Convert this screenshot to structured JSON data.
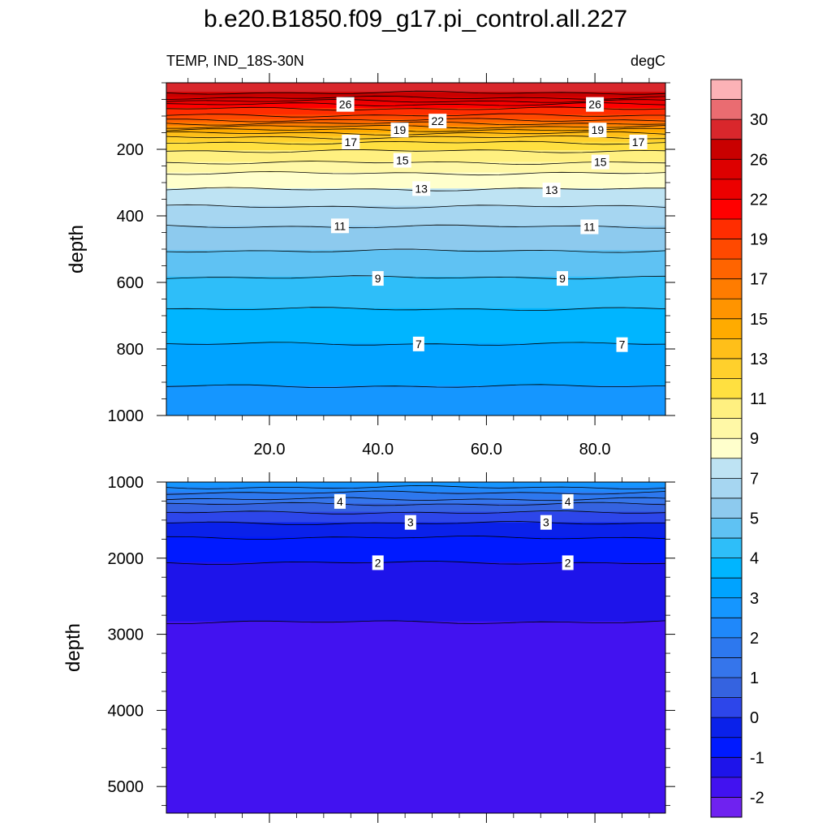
{
  "title": "b.e20.B1850.f09_g17.pi_control.all.227",
  "subtitle_left": "TEMP, IND_18S-30N",
  "subtitle_right": "degC",
  "chart_data": [
    {
      "type": "heatmap",
      "panel": "upper",
      "variable": "TEMP",
      "region": "IND_18S-30N",
      "units": "degC",
      "ylabel": "depth",
      "y_reversed": true,
      "xlim": [
        1,
        93
      ],
      "ylim": [
        0,
        1000
      ],
      "x_ticks": [
        20,
        40,
        60,
        80
      ],
      "x_tick_labels": [
        "20.0",
        "40.0",
        "60.0",
        "80.0"
      ],
      "y_ticks": [
        200,
        400,
        600,
        800,
        1000
      ],
      "y_tick_labels": [
        "200",
        "400",
        "600",
        "800",
        "1000"
      ],
      "contour_depths": [
        {
          "level": 29,
          "depth": 30
        },
        {
          "level": 28,
          "depth": 45
        },
        {
          "level": 27,
          "depth": 55
        },
        {
          "level": 26,
          "depth": 65
        },
        {
          "level": 25,
          "depth": 78
        },
        {
          "level": 24,
          "depth": 98
        },
        {
          "level": 23,
          "depth": 112
        },
        {
          "level": 22,
          "depth": 122
        },
        {
          "level": 21,
          "depth": 132
        },
        {
          "level": 20,
          "depth": 142
        },
        {
          "level": 19,
          "depth": 152
        },
        {
          "level": 18,
          "depth": 164
        },
        {
          "level": 17,
          "depth": 180
        },
        {
          "level": 16,
          "depth": 205
        },
        {
          "level": 15,
          "depth": 240
        },
        {
          "level": 14,
          "depth": 272
        },
        {
          "level": 13,
          "depth": 320
        },
        {
          "level": 12,
          "depth": 372
        },
        {
          "level": 11,
          "depth": 432
        },
        {
          "level": 10,
          "depth": 505
        },
        {
          "level": 9,
          "depth": 585
        },
        {
          "level": 8,
          "depth": 680
        },
        {
          "level": 7,
          "depth": 785
        },
        {
          "level": 6,
          "depth": 912
        }
      ],
      "contour_labels": [
        {
          "text": "26",
          "x": 34.0,
          "depth": 65
        },
        {
          "text": "26",
          "x": 80.0,
          "depth": 65
        },
        {
          "text": "22",
          "x": 51.0,
          "depth": 115
        },
        {
          "text": "19",
          "x": 44.0,
          "depth": 142
        },
        {
          "text": "19",
          "x": 80.5,
          "depth": 142
        },
        {
          "text": "17",
          "x": 35.0,
          "depth": 178
        },
        {
          "text": "17",
          "x": 88.0,
          "depth": 178
        },
        {
          "text": "15",
          "x": 44.5,
          "depth": 233
        },
        {
          "text": "15",
          "x": 81.0,
          "depth": 238
        },
        {
          "text": "13",
          "x": 48.0,
          "depth": 318
        },
        {
          "text": "13",
          "x": 72.0,
          "depth": 322
        },
        {
          "text": "11",
          "x": 33.0,
          "depth": 430
        },
        {
          "text": "11",
          "x": 79.0,
          "depth": 433
        },
        {
          "text": "9",
          "x": 40.0,
          "depth": 588
        },
        {
          "text": "9",
          "x": 74.0,
          "depth": 588
        },
        {
          "text": "7",
          "x": 47.5,
          "depth": 785
        },
        {
          "text": "7",
          "x": 85.0,
          "depth": 787
        }
      ]
    },
    {
      "type": "heatmap",
      "panel": "lower",
      "variable": "TEMP",
      "region": "IND_18S-30N",
      "units": "degC",
      "ylabel": "depth",
      "y_reversed": true,
      "xlim": [
        1,
        93
      ],
      "ylim": [
        1000,
        5350
      ],
      "y_ticks": [
        1000,
        2000,
        3000,
        4000,
        5000
      ],
      "y_tick_labels": [
        "1000",
        "2000",
        "3000",
        "4000",
        "5000"
      ],
      "contour_depths": [
        {
          "level": 5.5,
          "depth": 1070
        },
        {
          "level": 5,
          "depth": 1140
        },
        {
          "level": 4.5,
          "depth": 1225
        },
        {
          "level": 4,
          "depth": 1290
        },
        {
          "level": 3.5,
          "depth": 1400
        },
        {
          "level": 3,
          "depth": 1540
        },
        {
          "level": 2.5,
          "depth": 1730
        },
        {
          "level": 2,
          "depth": 2060
        },
        {
          "level": 1.5,
          "depth": 2840
        }
      ],
      "contour_labels": [
        {
          "text": "4",
          "x": 33.0,
          "depth": 1255
        },
        {
          "text": "4",
          "x": 75.0,
          "depth": 1255
        },
        {
          "text": "3",
          "x": 46.0,
          "depth": 1530
        },
        {
          "text": "3",
          "x": 71.0,
          "depth": 1530
        },
        {
          "text": "2",
          "x": 40.0,
          "depth": 2060
        },
        {
          "text": "2",
          "x": 75.0,
          "depth": 2060
        }
      ]
    }
  ],
  "colorbar": {
    "tick_labels": [
      "30",
      "26",
      "22",
      "19",
      "17",
      "15",
      "13",
      "11",
      "9",
      "7",
      "5",
      "4",
      "3",
      "2",
      "1",
      "0",
      "-1",
      "-2"
    ],
    "colors_top_to_bottom": [
      "#FCB2B6",
      "#EA6C71",
      "#D9272C",
      "#C90000",
      "#DD0000",
      "#EC0000",
      "#FF0000",
      "#FF2D00",
      "#FF4900",
      "#FF6400",
      "#FF7C00",
      "#FF9400",
      "#FFAB00",
      "#FFBF19",
      "#FFD02C",
      "#FFE040",
      "#FFF080",
      "#FFF8A6",
      "#FFFFCC",
      "#BEE3F3",
      "#A6D6F1",
      "#8DCAEE",
      "#5FC2F3",
      "#2EBEF9",
      "#00B5FF",
      "#00A3FF",
      "#1596FF",
      "#1F88FA",
      "#2D78EE",
      "#3575EB",
      "#3563E0",
      "#2D46EA",
      "#0A21EA",
      "#001AFF",
      "#1E14EA",
      "#4212F0",
      "#6F22F0"
    ]
  }
}
